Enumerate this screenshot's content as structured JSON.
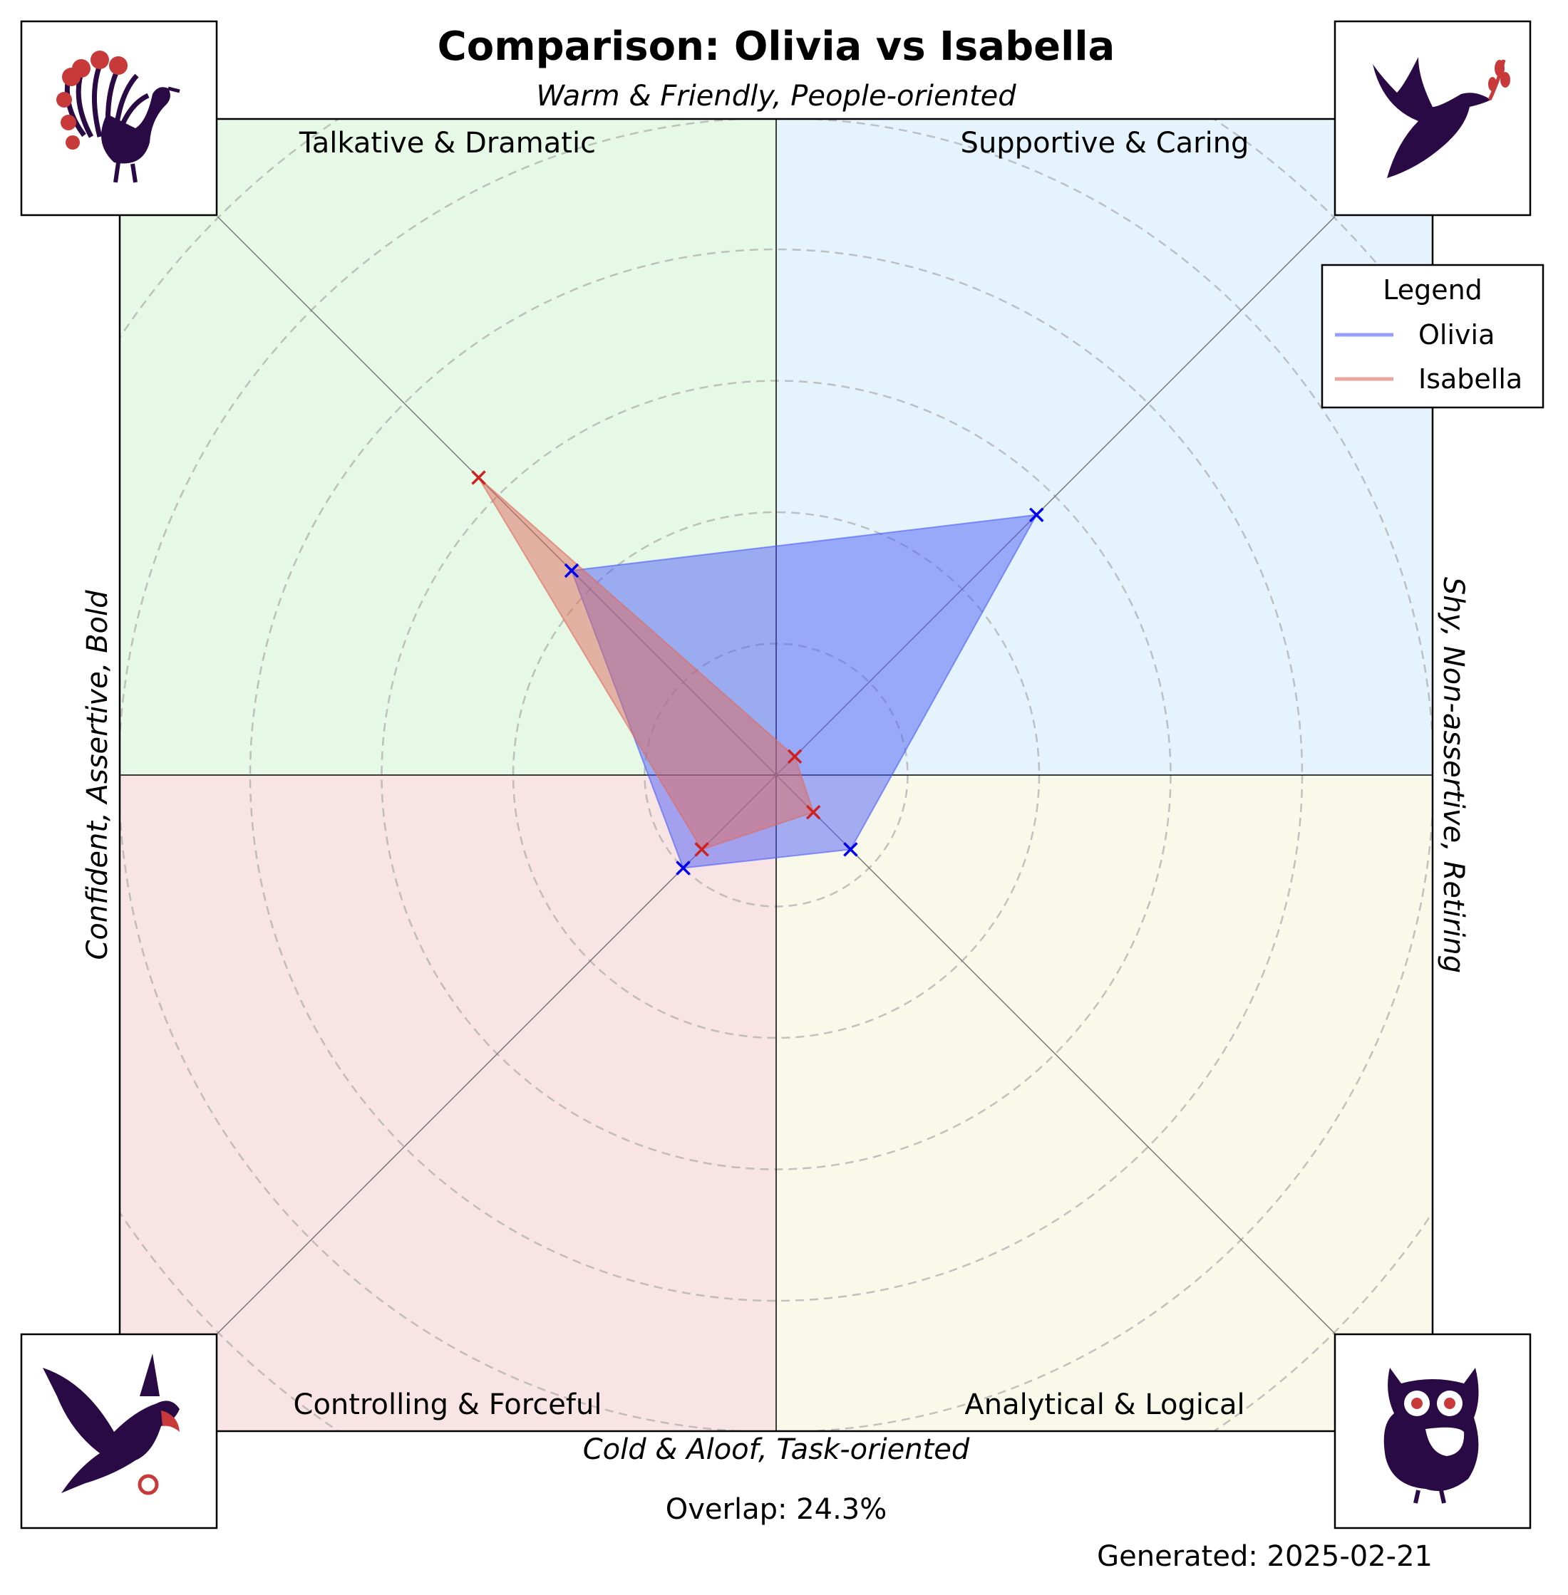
{
  "title": "Comparison: Olivia vs Isabella",
  "axes": {
    "top": "Warm & Friendly, People-oriented",
    "bottom": "Cold & Aloof, Task-oriented",
    "left": "Confident, Assertive, Bold",
    "right": "Shy, Non-assertive, Retiring"
  },
  "quadrants": {
    "top_left": {
      "label": "Talkative & Dramatic",
      "color": "#e6f8e6",
      "icon": "peacock-icon"
    },
    "top_right": {
      "label": "Supportive & Caring",
      "color": "#e5f4fc",
      "icon": "dove-icon"
    },
    "bottom_left": {
      "label": "Controlling & Forceful",
      "color": "#f9e4e5",
      "icon": "eagle-icon"
    },
    "bottom_right": {
      "label": "Analytical & Logical",
      "color": "#f9f9ea",
      "icon": "owl-icon"
    }
  },
  "legend": {
    "title": "Legend",
    "items": [
      {
        "name": "Olivia",
        "color": "#4d5ef7"
      },
      {
        "name": "Isabella",
        "color": "#e06a5e"
      }
    ]
  },
  "footer": {
    "overlap": "Overlap: 24.3%",
    "generated": "Generated: 2025-02-21"
  },
  "colors": {
    "olivia_fill": "#4d5ef7",
    "olivia_marker": "#0000ee",
    "isabella_fill": "#e06a5e",
    "isabella_marker": "#cc2222",
    "icon_primary": "#2a0a45",
    "icon_accent": "#c83a3a"
  },
  "chart_data": {
    "type": "radar",
    "axes_order": [
      "Talkative & Dramatic",
      "Supportive & Caring",
      "Analytical & Logical",
      "Controlling & Forceful"
    ],
    "rings": [
      1,
      2,
      3,
      4,
      5,
      6
    ],
    "rmax": 7,
    "grid": true,
    "legend_position": "top-right",
    "series": [
      {
        "name": "Olivia",
        "values": [
          2.2,
          2.8,
          0.8,
          1.0
        ]
      },
      {
        "name": "Isabella",
        "values": [
          3.2,
          0.2,
          0.4,
          0.8
        ]
      }
    ]
  }
}
